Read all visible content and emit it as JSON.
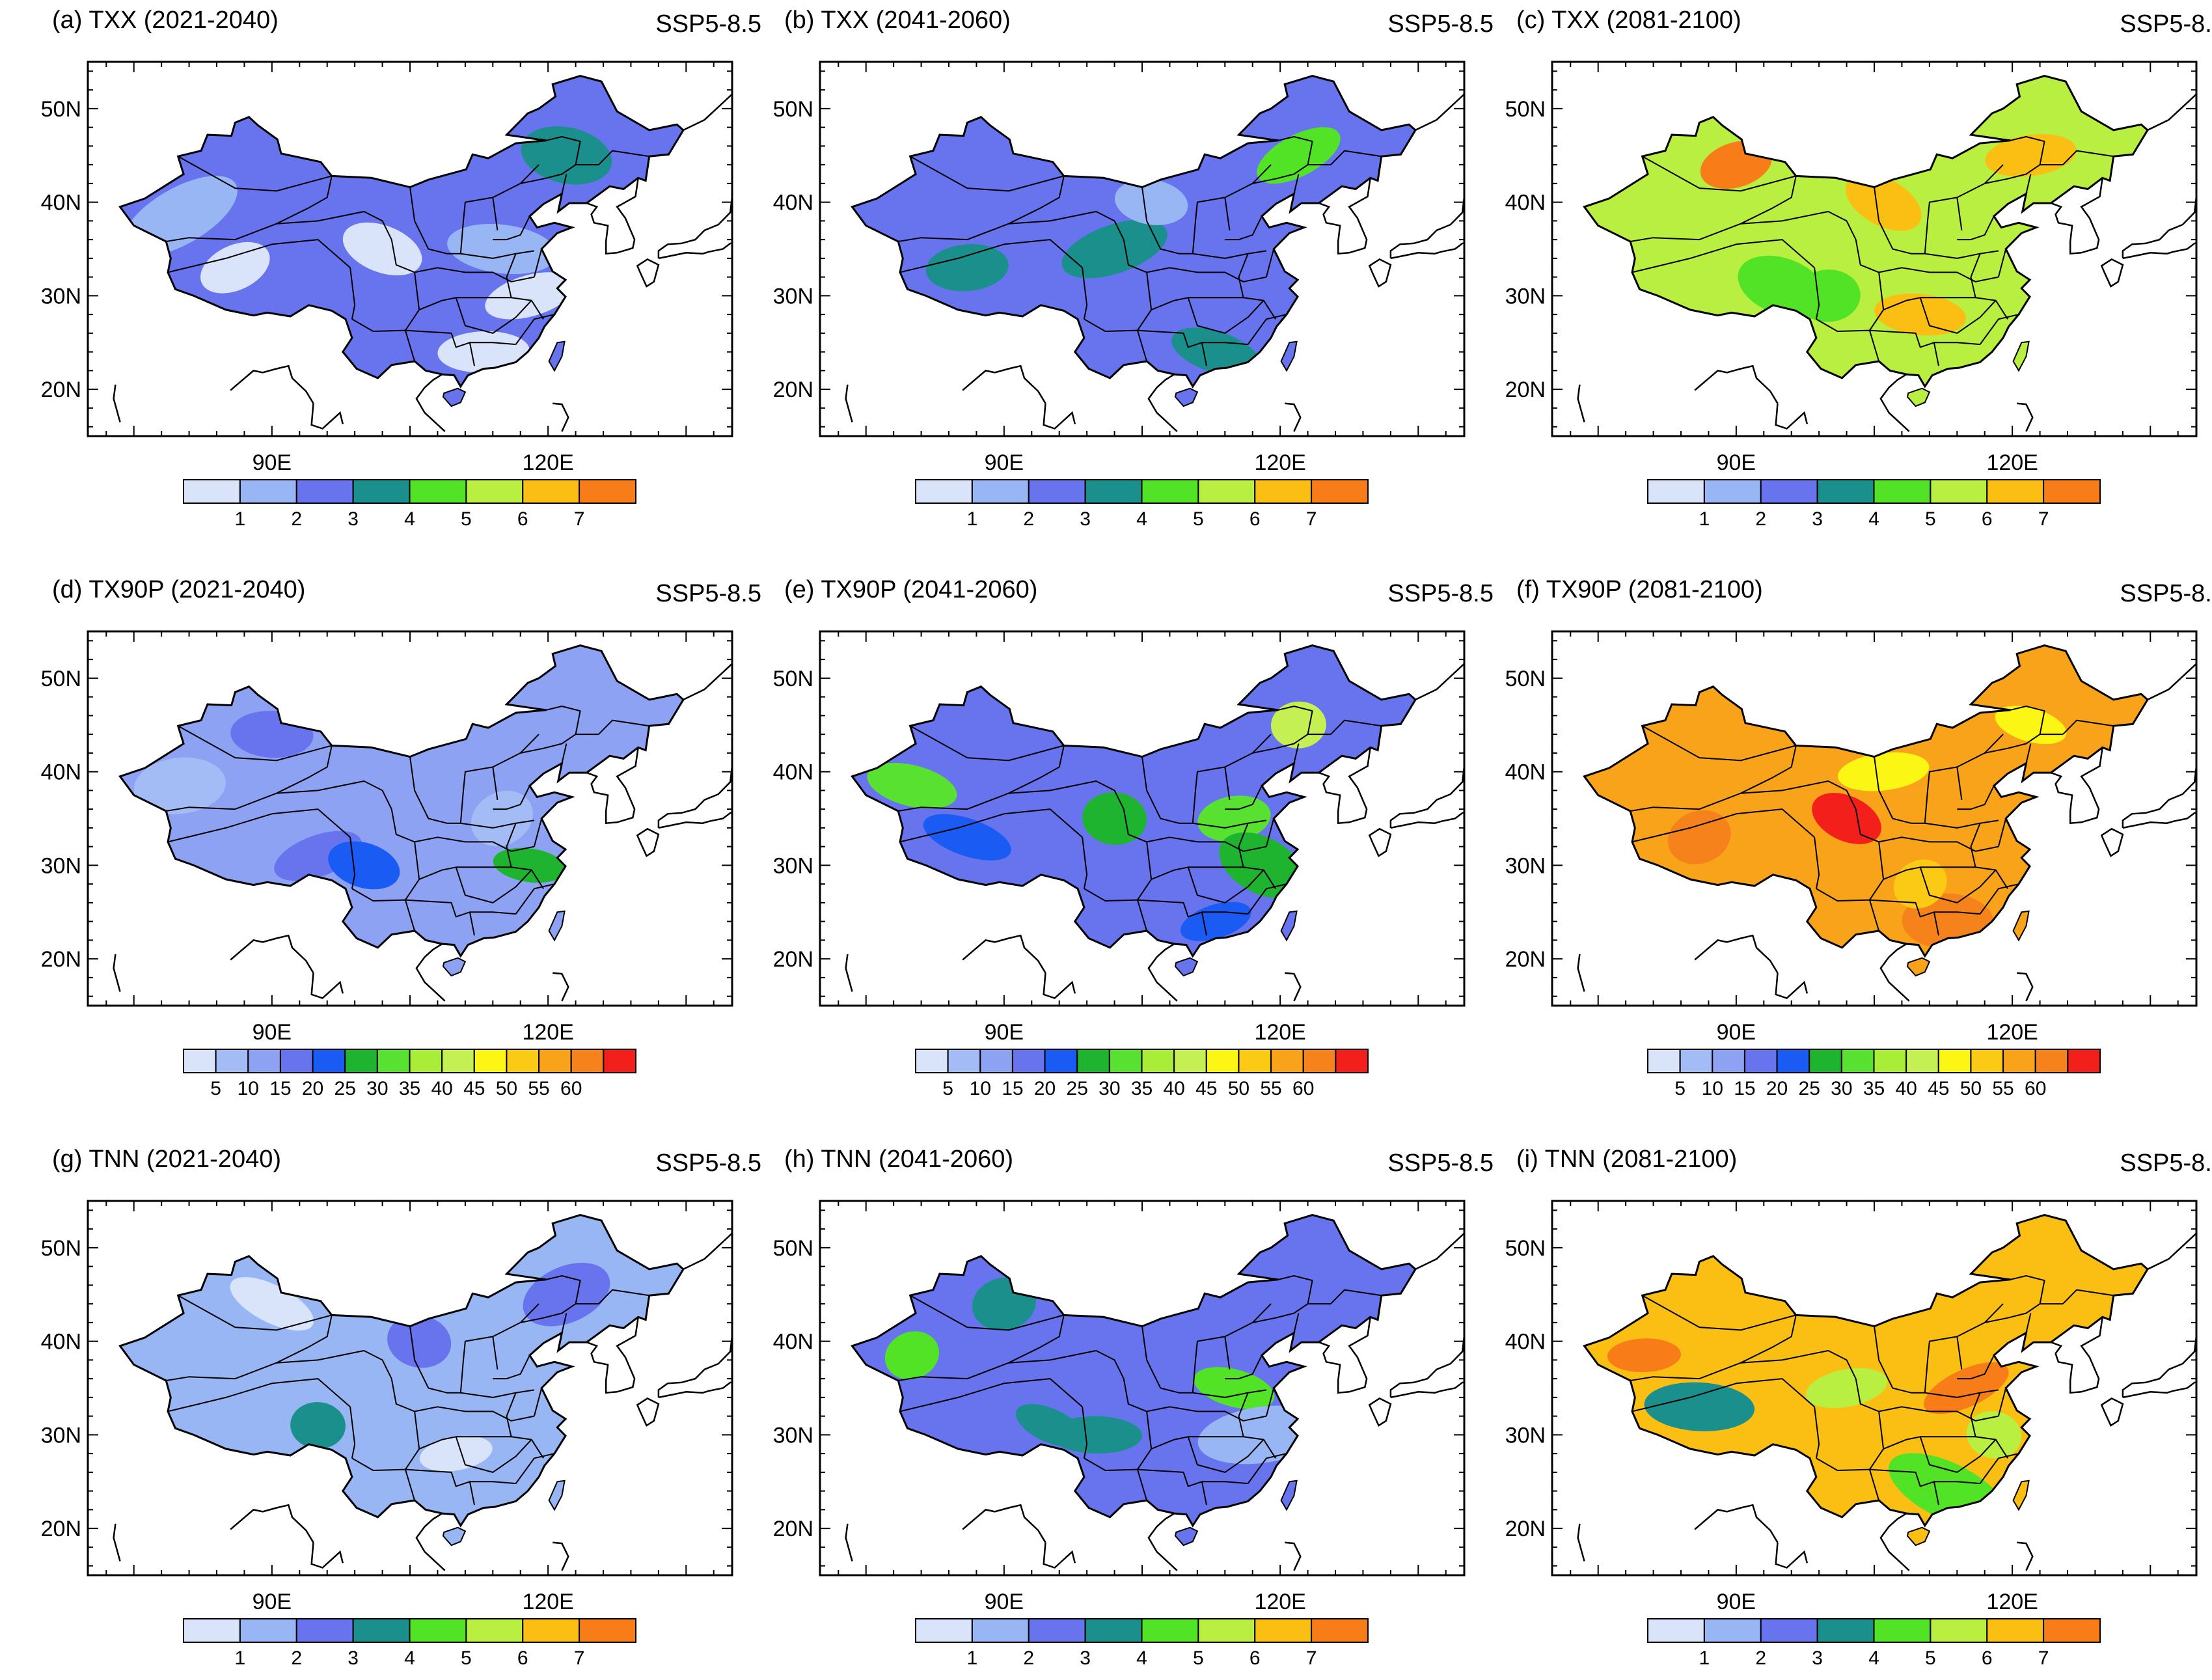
{
  "scenario": "SSP5-8.5",
  "lat_labels": [
    "50N",
    "40N",
    "30N",
    "20N"
  ],
  "lon_labels": [
    "90E",
    "120E"
  ],
  "colormaps": {
    "small": [
      "#d9e4fb",
      "#98b6f4",
      "#6874ee",
      "#1b8f8b",
      "#52e327",
      "#b9ef40",
      "#fbbf14",
      "#f87d19"
    ],
    "large": [
      "#d9e4fb",
      "#a4bcf6",
      "#8da2f3",
      "#6874ee",
      "#1a5cf3",
      "#1fb430",
      "#58e130",
      "#a9ed38",
      "#c5f054",
      "#fbf613",
      "#fbca14",
      "#f9a31b",
      "#f6821c",
      "#f31f1a"
    ]
  },
  "colorbar_labels": {
    "small": [
      "1",
      "2",
      "3",
      "4",
      "5",
      "6",
      "7"
    ],
    "large": [
      "5",
      "10",
      "15",
      "20",
      "25",
      "30",
      "35",
      "40",
      "45",
      "50",
      "55",
      "60"
    ]
  },
  "panels": [
    {
      "title": "(a) TXX (2021-2040)",
      "index": "TXX",
      "period": "2021-2040",
      "scale": "small",
      "base": "#6874ee",
      "patches": [
        [
          "#98b6f4",
          2
        ],
        [
          "#d9e4fb",
          4
        ],
        [
          "#1b8f8b",
          1
        ]
      ]
    },
    {
      "title": "(b) TXX (2041-2060)",
      "index": "TXX",
      "period": "2041-2060",
      "scale": "small",
      "base": "#6874ee",
      "patches": [
        [
          "#1b8f8b",
          3
        ],
        [
          "#52e327",
          1
        ],
        [
          "#98b6f4",
          1
        ]
      ]
    },
    {
      "title": "(c) TXX (2081-2100)",
      "index": "TXX",
      "period": "2081-2100",
      "scale": "small",
      "base": "#b9ef40",
      "patches": [
        [
          "#fbbf14",
          3
        ],
        [
          "#f87d19",
          1
        ],
        [
          "#52e327",
          2
        ]
      ]
    },
    {
      "title": "(d) TX90P (2021-2040)",
      "index": "TX90P",
      "period": "2021-2040",
      "scale": "large",
      "base": "#8da2f3",
      "patches": [
        [
          "#6874ee",
          2
        ],
        [
          "#1a5cf3",
          1
        ],
        [
          "#a4bcf6",
          2
        ],
        [
          "#1fb430",
          1
        ]
      ]
    },
    {
      "title": "(e) TX90P (2041-2060)",
      "index": "TX90P",
      "period": "2041-2060",
      "scale": "large",
      "base": "#6874ee",
      "patches": [
        [
          "#58e130",
          2
        ],
        [
          "#1fb430",
          2
        ],
        [
          "#1a5cf3",
          2
        ],
        [
          "#c5f054",
          1
        ]
      ]
    },
    {
      "title": "(f) TX90P (2081-2100)",
      "index": "TX90P",
      "period": "2081-2100",
      "scale": "large",
      "base": "#f9a31b",
      "patches": [
        [
          "#f31f1a",
          1
        ],
        [
          "#f6821c",
          2
        ],
        [
          "#fbf613",
          2
        ],
        [
          "#fbca14",
          1
        ]
      ]
    },
    {
      "title": "(g) TNN (2021-2040)",
      "index": "TNN",
      "period": "2021-2040",
      "scale": "small",
      "base": "#98b6f4",
      "patches": [
        [
          "#6874ee",
          2
        ],
        [
          "#d9e4fb",
          2
        ],
        [
          "#1b8f8b",
          1
        ]
      ]
    },
    {
      "title": "(h) TNN (2041-2060)",
      "index": "TNN",
      "period": "2041-2060",
      "scale": "small",
      "base": "#6874ee",
      "patches": [
        [
          "#1b8f8b",
          3
        ],
        [
          "#52e327",
          2
        ],
        [
          "#98b6f4",
          1
        ]
      ]
    },
    {
      "title": "(i) TNN (2081-2100)",
      "index": "TNN",
      "period": "2081-2100",
      "scale": "small",
      "base": "#fbbf14",
      "patches": [
        [
          "#f87d19",
          2
        ],
        [
          "#b9ef40",
          2
        ],
        [
          "#52e327",
          1
        ],
        [
          "#1b8f8b",
          1
        ]
      ]
    }
  ]
}
